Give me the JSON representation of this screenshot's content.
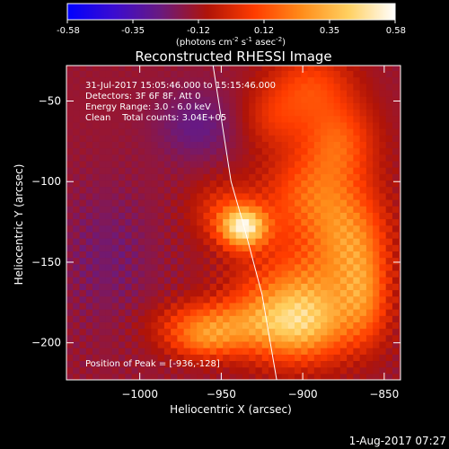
{
  "colorbar": {
    "ticks": [
      "-0.58",
      "-0.35",
      "-0.12",
      "0.12",
      "0.35",
      "0.58"
    ],
    "unit_prefix": "(photons cm",
    "unit_exp1": "-2",
    "unit_mid": " s",
    "unit_exp2": "-1",
    "unit_mid2": " asec",
    "unit_exp3": "-2",
    "unit_suffix": ")",
    "colors": [
      "#0000ff",
      "#3b0cd0",
      "#6a1a7e",
      "#b01408",
      "#ff3c00",
      "#ff8c1a",
      "#ffd060",
      "#ffffff"
    ]
  },
  "plot": {
    "title": "Reconstructed RHESSI Image",
    "info_lines": [
      "31-Jul-2017 15:05:46.000 to 15:15:46.000",
      "Detectors: 3F 6F 8F, Att 0",
      "Energy Range: 3.0 - 6.0 keV",
      "Clean    Total counts: 3.04E+05"
    ],
    "peak_label": "Position of Peak = [-936,-128]",
    "timestamp": "1-Aug-2017 07:27"
  },
  "chart_data": {
    "type": "heatmap",
    "title": "Reconstructed RHESSI Image",
    "xlabel": "Heliocentric X (arcsec)",
    "ylabel": "Heliocentric Y (arcsec)",
    "xlim": [
      -1045,
      -840
    ],
    "ylim": [
      -223,
      -28
    ],
    "x_ticks": [
      -1000,
      -950,
      -900,
      -850
    ],
    "y_ticks": [
      -50,
      -100,
      -150,
      -200
    ],
    "x_tick_labels": [
      "−1000",
      "−950",
      "−900",
      "−850"
    ],
    "y_tick_labels": [
      "−50",
      "−100",
      "−150",
      "−200"
    ],
    "value_range": [
      -0.58,
      0.58
    ],
    "peak": [
      -936,
      -128
    ],
    "limb": [
      [
        -955,
        -28
      ],
      [
        -944,
        -100
      ],
      [
        -936,
        -128
      ],
      [
        -925,
        -170
      ],
      [
        -916,
        -223
      ]
    ],
    "sources": [
      {
        "x": -936,
        "y": -128,
        "amp": 0.58,
        "sx": 10,
        "sy": 9
      },
      {
        "x": -950,
        "y": -118,
        "amp": 0.16,
        "sx": 14,
        "sy": 14
      },
      {
        "x": -895,
        "y": -40,
        "amp": 0.22,
        "sx": 18,
        "sy": 16
      },
      {
        "x": -878,
        "y": -75,
        "amp": 0.26,
        "sx": 16,
        "sy": 18
      },
      {
        "x": -895,
        "y": -110,
        "amp": 0.28,
        "sx": 22,
        "sy": 20
      },
      {
        "x": -870,
        "y": -135,
        "amp": 0.28,
        "sx": 16,
        "sy": 20
      },
      {
        "x": -900,
        "y": -170,
        "amp": 0.32,
        "sx": 28,
        "sy": 22
      },
      {
        "x": -905,
        "y": -190,
        "amp": 0.36,
        "sx": 24,
        "sy": 16
      },
      {
        "x": -958,
        "y": -188,
        "amp": 0.28,
        "sx": 22,
        "sy": 10
      },
      {
        "x": -918,
        "y": -60,
        "amp": 0.15,
        "sx": 14,
        "sy": 14
      },
      {
        "x": -862,
        "y": -170,
        "amp": 0.22,
        "sx": 10,
        "sy": 20
      },
      {
        "x": -960,
        "y": -200,
        "amp": 0.2,
        "sx": 16,
        "sy": 8
      }
    ],
    "background": -0.14,
    "dark_patches": [
      {
        "x": -965,
        "y": -65,
        "amp": -0.12,
        "sx": 18,
        "sy": 16
      },
      {
        "x": -1020,
        "y": -145,
        "amp": -0.08,
        "sx": 20,
        "sy": 30
      }
    ]
  }
}
